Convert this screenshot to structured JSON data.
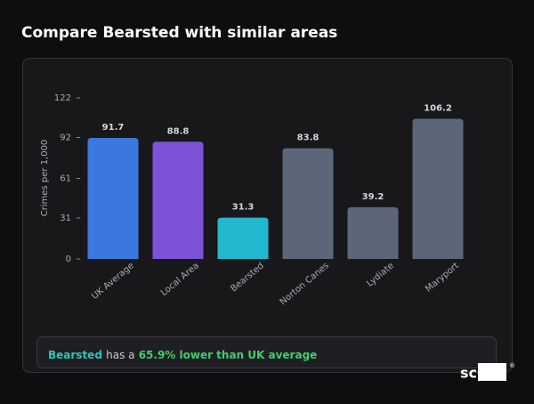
{
  "header": {
    "title": "Compare Bearsted with similar areas"
  },
  "chart_data": {
    "type": "bar",
    "y_label": "Crimes per 1,000",
    "categories": [
      "UK Average",
      "Local Area",
      "Bearsted",
      "Norton Canes",
      "Lydiate",
      "Maryport"
    ],
    "values": [
      91.7,
      88.8,
      31.3,
      83.8,
      39.2,
      106.2
    ],
    "colors": [
      "#3a78dd",
      "#7c52d8",
      "#22b9d0",
      "#5d6679",
      "#5d6679",
      "#5d6679"
    ],
    "ylim": [
      0,
      122
    ],
    "yticks": [
      0,
      31,
      61,
      92,
      122
    ],
    "grid": false
  },
  "summary": {
    "area": "Bearsted",
    "text": "has a",
    "highlight": "65.9% lower than UK average"
  },
  "logo": {
    "text": "scOS",
    "mark": "®"
  }
}
